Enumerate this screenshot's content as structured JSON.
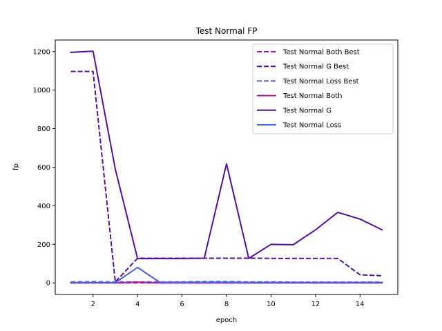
{
  "chart_data": {
    "type": "line",
    "title": "Test Normal FP",
    "xlabel": "epoch",
    "ylabel": "fp",
    "xlim": [
      0.3,
      15.7
    ],
    "ylim": [
      -60,
      1260
    ],
    "xticks": [
      2,
      4,
      6,
      8,
      10,
      12,
      14
    ],
    "yticks": [
      0,
      200,
      400,
      600,
      800,
      1000,
      1200
    ],
    "grid": false,
    "legend_position": "top-right",
    "x": [
      1,
      2,
      3,
      4,
      5,
      6,
      7,
      8,
      9,
      10,
      11,
      12,
      13,
      14,
      15
    ],
    "series": [
      {
        "name": "Test Normal Both Best",
        "color": "#b5179e",
        "dashed": true,
        "values": [
          0,
          0,
          0,
          0,
          0,
          0,
          0,
          0,
          0,
          0,
          0,
          0,
          0,
          0,
          0
        ]
      },
      {
        "name": "Test Normal G Best",
        "color": "#560bad",
        "dashed": true,
        "values": [
          1097,
          1097,
          5,
          128,
          128,
          128,
          128,
          128,
          128,
          127,
          127,
          127,
          127,
          42,
          37
        ]
      },
      {
        "name": "Test Normal Loss Best",
        "color": "#4361ee",
        "dashed": true,
        "values": [
          5,
          6,
          5,
          5,
          5,
          5,
          7,
          7,
          5,
          5,
          4,
          4,
          4,
          4,
          4
        ]
      },
      {
        "name": "Test Normal Both",
        "color": "#b5179e",
        "dashed": false,
        "values": [
          0,
          0,
          0,
          4,
          0,
          0,
          0,
          0,
          0,
          0,
          0,
          0,
          0,
          0,
          0
        ]
      },
      {
        "name": "Test Normal G",
        "color": "#560bad",
        "dashed": false,
        "values": [
          1196,
          1202,
          590,
          126,
          126,
          126,
          128,
          618,
          127,
          200,
          198,
          275,
          366,
          331,
          275
        ]
      },
      {
        "name": "Test Normal Loss",
        "color": "#4361ee",
        "dashed": false,
        "values": [
          1,
          1,
          1,
          80,
          3,
          3,
          3,
          3,
          2,
          2,
          2,
          2,
          2,
          2,
          2
        ]
      }
    ]
  }
}
